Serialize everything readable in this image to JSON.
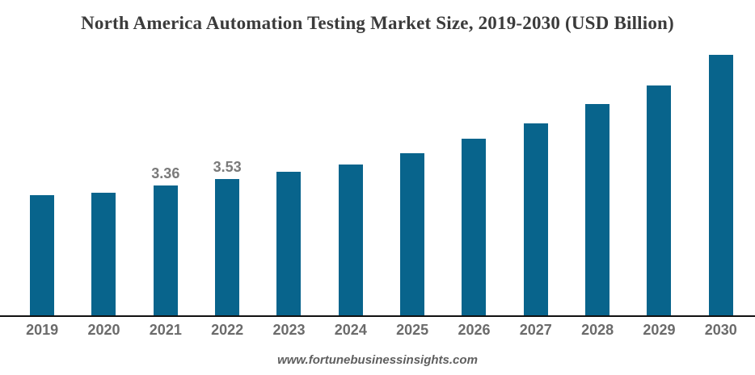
{
  "title": "North America Automation Testing Market Size, 2019-2030 (USD Billion)",
  "source": "www.fortunebusinessinsights.com",
  "colors": {
    "bar": "#08648c",
    "title_text": "#3b3b3b",
    "axis_line": "#111111",
    "year_label": "#6b6b6b",
    "data_label": "#7a7a7a",
    "background": "#ffffff"
  },
  "chart_data": {
    "type": "bar",
    "title": "North America Automation Testing Market Size, 2019-2030 (USD Billion)",
    "categories": [
      "2019",
      "2020",
      "2021",
      "2022",
      "2023",
      "2024",
      "2025",
      "2026",
      "2027",
      "2028",
      "2029",
      "2030"
    ],
    "values": [
      3.11,
      3.17,
      3.36,
      3.53,
      3.71,
      3.9,
      4.19,
      4.57,
      4.96,
      5.46,
      5.93,
      6.72
    ],
    "data_labels": [
      "",
      "",
      "3.36",
      "3.53",
      "",
      "",
      "",
      "",
      "",
      "",
      "",
      ""
    ],
    "xlabel": "",
    "ylabel": "USD Billion",
    "ylim": [
      0,
      8.1
    ],
    "grid": false,
    "legend": false,
    "bar_color": "#08648c"
  }
}
